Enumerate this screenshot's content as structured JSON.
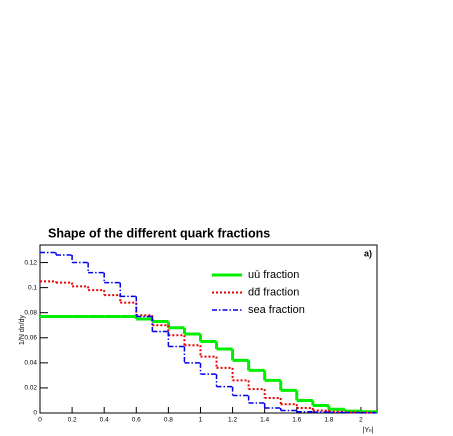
{
  "chart_data": {
    "type": "histogram",
    "title": "Shape of the different quark fractions",
    "annotation": "a)",
    "x_label": "|Yₗₗ|",
    "y_label": "1/N dn/dy",
    "bins": [
      0,
      0.1,
      0.2,
      0.3,
      0.4,
      0.5,
      0.6,
      0.7,
      0.8,
      0.9,
      1.0,
      1.1,
      1.2,
      1.3,
      1.4,
      1.5,
      1.6,
      1.7,
      1.8,
      1.9,
      2.0,
      2.1
    ],
    "series": [
      {
        "name": "uū fraction",
        "color": "#00ee00",
        "style": "solid",
        "values": [
          0.077,
          0.077,
          0.077,
          0.077,
          0.077,
          0.077,
          0.075,
          0.073,
          0.068,
          0.063,
          0.057,
          0.051,
          0.042,
          0.034,
          0.026,
          0.018,
          0.01,
          0.006,
          0.003,
          0.0015,
          0.001
        ]
      },
      {
        "name": "dd̄ fraction",
        "color": "#ee0000",
        "style": "dotted",
        "values": [
          0.105,
          0.104,
          0.101,
          0.098,
          0.094,
          0.088,
          0.078,
          0.07,
          0.062,
          0.054,
          0.045,
          0.036,
          0.026,
          0.019,
          0.012,
          0.007,
          0.004,
          0.002,
          0.001,
          0.0005,
          0.0003
        ]
      },
      {
        "name": "sea fraction",
        "color": "#0000ee",
        "style": "dashdot",
        "values": [
          0.128,
          0.126,
          0.12,
          0.112,
          0.104,
          0.093,
          0.077,
          0.065,
          0.053,
          0.04,
          0.031,
          0.021,
          0.014,
          0.008,
          0.004,
          0.002,
          0.001,
          0.0007,
          0.0005,
          0.0003,
          0.0002
        ]
      }
    ],
    "xlim": [
      0,
      2.1
    ],
    "ylim": [
      0,
      0.134
    ],
    "xticks": [
      0,
      0.2,
      0.4,
      0.6,
      0.8,
      1,
      1.2,
      1.4,
      1.6,
      1.8,
      2
    ],
    "yticks": [
      0,
      0.02,
      0.04,
      0.06,
      0.08,
      0.1,
      0.12
    ],
    "grid": false
  }
}
